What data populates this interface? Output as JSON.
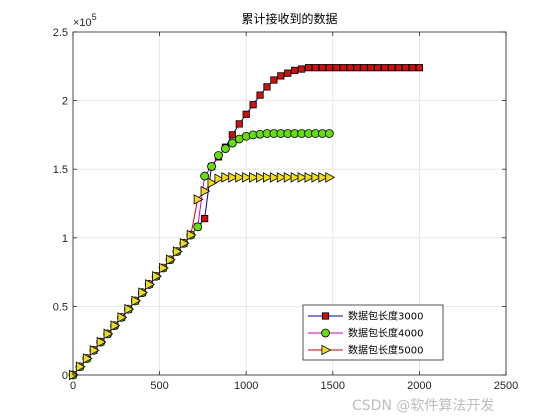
{
  "watermark": "CSDN @软件算法开发",
  "chart_data": {
    "type": "line",
    "title": "累计接收到的数据",
    "xlabel": "",
    "ylabel": "",
    "xlim": [
      0,
      2500
    ],
    "ylim": [
      0,
      2.5
    ],
    "xticks": [
      0,
      500,
      1000,
      1500,
      2000,
      2500
    ],
    "yticks": [
      0,
      0.5,
      1,
      1.5,
      2,
      2.5
    ],
    "xtick_labels": [
      "0",
      "500",
      "1000",
      "1500",
      "2000",
      "2500"
    ],
    "ytick_labels": [
      "0",
      "0.5",
      "1",
      "1.5",
      "2",
      "2.5"
    ],
    "y_exponent_label": "×10",
    "y_exponent_power": "5",
    "grid": true,
    "legend_position": "bottom-right",
    "series": [
      {
        "name": "数据包长度3000",
        "line_color": "#0000aa",
        "marker": "square",
        "marker_fill": "#cc1111",
        "x": [
          0,
          40,
          80,
          120,
          160,
          200,
          240,
          280,
          320,
          360,
          400,
          440,
          480,
          520,
          560,
          600,
          640,
          680,
          720,
          760,
          800,
          840,
          880,
          920,
          960,
          1000,
          1040,
          1080,
          1120,
          1160,
          1200,
          1240,
          1280,
          1320,
          1360,
          1400,
          1440,
          1480,
          1520,
          1560,
          1600,
          1640,
          1680,
          1720,
          1760,
          1800,
          1840,
          1880,
          1920,
          1960,
          2000
        ],
        "y": [
          0,
          0.06,
          0.12,
          0.18,
          0.24,
          0.3,
          0.36,
          0.42,
          0.48,
          0.54,
          0.6,
          0.66,
          0.72,
          0.78,
          0.84,
          0.9,
          0.96,
          1.02,
          1.08,
          1.14,
          1.52,
          1.59,
          1.66,
          1.75,
          1.83,
          1.9,
          1.97,
          2.04,
          2.1,
          2.15,
          2.18,
          2.2,
          2.22,
          2.23,
          2.24,
          2.24,
          2.24,
          2.24,
          2.24,
          2.24,
          2.24,
          2.24,
          2.24,
          2.24,
          2.24,
          2.24,
          2.24,
          2.24,
          2.24,
          2.24,
          2.24
        ]
      },
      {
        "name": "数据包长度4000",
        "line_color": "#cc00cc",
        "marker": "circle",
        "marker_fill": "#66dd11",
        "x": [
          0,
          40,
          80,
          120,
          160,
          200,
          240,
          280,
          320,
          360,
          400,
          440,
          480,
          520,
          560,
          600,
          640,
          680,
          720,
          760,
          800,
          840,
          880,
          920,
          960,
          1000,
          1040,
          1080,
          1120,
          1160,
          1200,
          1240,
          1280,
          1320,
          1360,
          1400,
          1440,
          1480
        ],
        "y": [
          0,
          0.06,
          0.12,
          0.18,
          0.24,
          0.3,
          0.36,
          0.42,
          0.48,
          0.54,
          0.6,
          0.66,
          0.72,
          0.78,
          0.84,
          0.9,
          0.96,
          1.02,
          1.08,
          1.45,
          1.52,
          1.6,
          1.65,
          1.69,
          1.72,
          1.74,
          1.75,
          1.755,
          1.76,
          1.76,
          1.76,
          1.76,
          1.76,
          1.76,
          1.76,
          1.76,
          1.76,
          1.76
        ]
      },
      {
        "name": "数据包长度5000",
        "line_color": "#cc0000",
        "marker": "triangle-right",
        "marker_fill": "#eedd22",
        "x": [
          0,
          40,
          80,
          120,
          160,
          200,
          240,
          280,
          320,
          360,
          400,
          440,
          480,
          520,
          560,
          600,
          640,
          680,
          720,
          760,
          800,
          840,
          880,
          920,
          960,
          1000,
          1040,
          1080,
          1120,
          1160,
          1200,
          1240,
          1280,
          1320,
          1360,
          1400,
          1440,
          1480
        ],
        "y": [
          0,
          0.06,
          0.12,
          0.18,
          0.24,
          0.3,
          0.36,
          0.42,
          0.48,
          0.54,
          0.6,
          0.66,
          0.72,
          0.78,
          0.84,
          0.9,
          0.96,
          1.02,
          1.28,
          1.34,
          1.4,
          1.43,
          1.44,
          1.44,
          1.44,
          1.44,
          1.44,
          1.44,
          1.44,
          1.44,
          1.44,
          1.44,
          1.44,
          1.44,
          1.44,
          1.44,
          1.44,
          1.44
        ]
      }
    ]
  }
}
